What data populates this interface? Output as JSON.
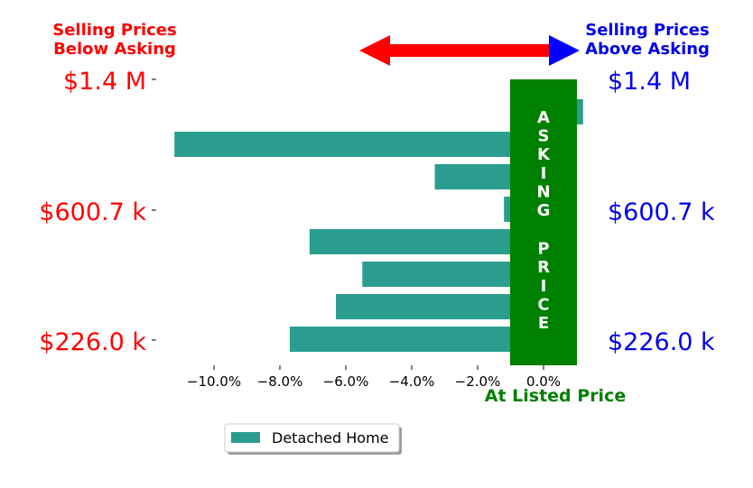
{
  "headers": {
    "left_line1": "Selling Prices",
    "left_line2": "Below Asking",
    "right_line1": "Selling Prices",
    "right_line2": "Above Asking"
  },
  "price_labels": [
    "$1.4 M",
    "$600.7 k",
    "$226.0 k"
  ],
  "asking_label": "ASKING PRICE",
  "at_listed_label": "At Listed Price",
  "colors": {
    "bar": "#2a9d8f",
    "asking_band": "#008000",
    "below": "#ff0000",
    "above": "#0000ee"
  },
  "chart_data": {
    "type": "bar",
    "orientation": "horizontal",
    "series": [
      {
        "name": "Detached Home",
        "values": [
          1.2,
          -11.2,
          -3.3,
          -1.2,
          -7.1,
          -5.5,
          -6.3,
          -7.7
        ]
      }
    ],
    "x_unit": "%",
    "xlim": [
      -12.0,
      1.6
    ],
    "xticks": [
      "−10.0%",
      "−8.0%",
      "−6.0%",
      "−4.0%",
      "−2.0%",
      "0.0%"
    ],
    "xtick_values": [
      -10,
      -8,
      -6,
      -4,
      -2,
      0
    ],
    "ytick_labels_left": [
      "$1.4 M",
      "$600.7 k",
      "$226.0 k"
    ],
    "ytick_labels_right": [
      "$1.4 M",
      "$600.7 k",
      "$226.0 k"
    ],
    "legend": "bottom-center"
  }
}
